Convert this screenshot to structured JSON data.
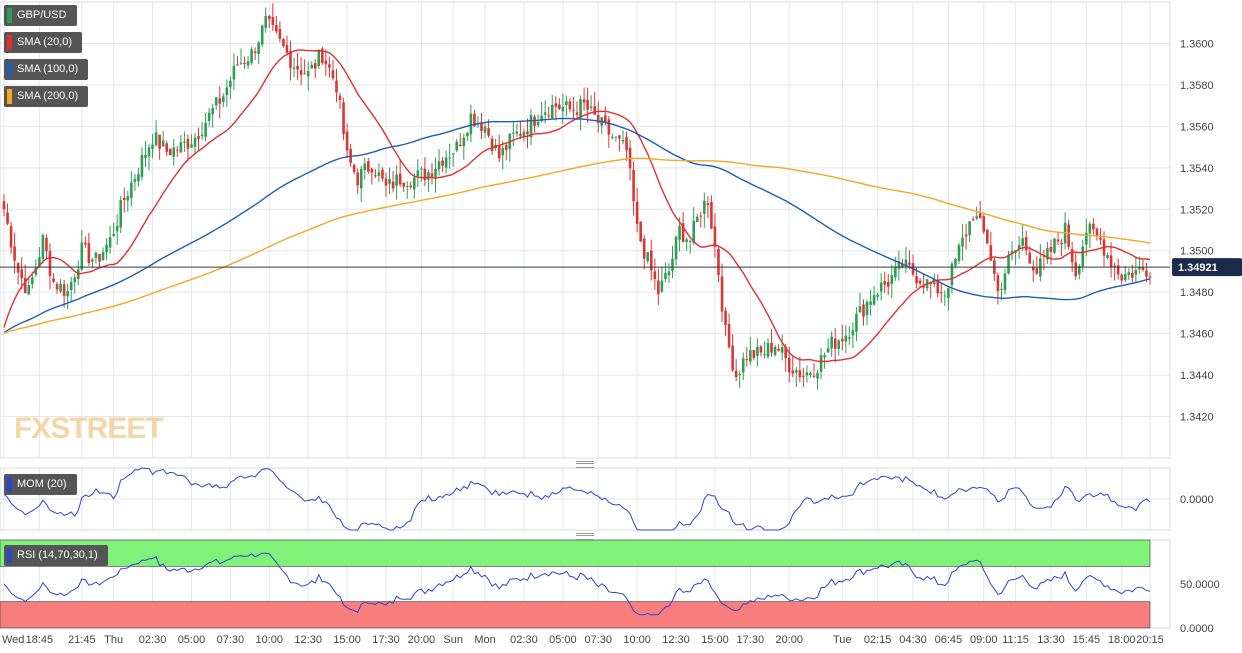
{
  "chart_data": [
    {
      "type": "candlestick",
      "symbol": "GBP/USD",
      "last_price": "1.34921",
      "price_ylim": [
        1.34,
        1.362
      ],
      "y_ticks": [
        "1.3600",
        "1.3580",
        "1.3560",
        "1.3540",
        "1.3520",
        "1.3500",
        "1.3480",
        "1.3460",
        "1.3440",
        "1.3420"
      ],
      "x_ticks": [
        {
          "label": "Wed",
          "bar": 0
        },
        {
          "label": "18:45",
          "bar": 10
        },
        {
          "label": "21:45",
          "bar": 22
        },
        {
          "label": "Thu",
          "bar": 31
        },
        {
          "label": "02:30",
          "bar": 42
        },
        {
          "label": "05:00",
          "bar": 53
        },
        {
          "label": "07:30",
          "bar": 64
        },
        {
          "label": "10:00",
          "bar": 75
        },
        {
          "label": "12:30",
          "bar": 86
        },
        {
          "label": "15:00",
          "bar": 97
        },
        {
          "label": "17:30",
          "bar": 108
        },
        {
          "label": "20:00",
          "bar": 118
        },
        {
          "label": "Sun",
          "bar": 127
        },
        {
          "label": "Mon",
          "bar": 136
        },
        {
          "label": "02:30",
          "bar": 147
        },
        {
          "label": "05:00",
          "bar": 158
        },
        {
          "label": "07:30",
          "bar": 168
        },
        {
          "label": "10:00",
          "bar": 179
        },
        {
          "label": "12:30",
          "bar": 190
        },
        {
          "label": "15:00",
          "bar": 201
        },
        {
          "label": "17:30",
          "bar": 211
        },
        {
          "label": "20:00",
          "bar": 222
        },
        {
          "label": "Tue",
          "bar": 237
        },
        {
          "label": "02:15",
          "bar": 247
        },
        {
          "label": "04:30",
          "bar": 257
        },
        {
          "label": "06:45",
          "bar": 267
        },
        {
          "label": "09:00",
          "bar": 277
        },
        {
          "label": "11:15",
          "bar": 286
        },
        {
          "label": "13:30",
          "bar": 296
        },
        {
          "label": "15:45",
          "bar": 306
        },
        {
          "label": "18:00",
          "bar": 316
        },
        {
          "label": "20:15",
          "bar": 324
        }
      ],
      "anchors": [
        [
          0,
          1.352
        ],
        [
          4,
          1.349
        ],
        [
          7,
          1.348
        ],
        [
          11,
          1.3505
        ],
        [
          14,
          1.3485
        ],
        [
          18,
          1.348
        ],
        [
          22,
          1.35
        ],
        [
          26,
          1.3495
        ],
        [
          30,
          1.3505
        ],
        [
          34,
          1.3525
        ],
        [
          38,
          1.354
        ],
        [
          42,
          1.3555
        ],
        [
          46,
          1.3548
        ],
        [
          50,
          1.355
        ],
        [
          54,
          1.3555
        ],
        [
          58,
          1.3565
        ],
        [
          62,
          1.3575
        ],
        [
          66,
          1.359
        ],
        [
          70,
          1.3595
        ],
        [
          74,
          1.361
        ],
        [
          78,
          1.36
        ],
        [
          82,
          1.359
        ],
        [
          86,
          1.3585
        ],
        [
          90,
          1.3595
        ],
        [
          94,
          1.358
        ],
        [
          97,
          1.3545
        ],
        [
          100,
          1.3535
        ],
        [
          104,
          1.3542
        ],
        [
          108,
          1.353
        ],
        [
          112,
          1.3535
        ],
        [
          116,
          1.3535
        ],
        [
          120,
          1.3538
        ],
        [
          124,
          1.3545
        ],
        [
          128,
          1.355
        ],
        [
          132,
          1.3565
        ],
        [
          136,
          1.356
        ],
        [
          140,
          1.3545
        ],
        [
          144,
          1.3555
        ],
        [
          148,
          1.356
        ],
        [
          152,
          1.3568
        ],
        [
          156,
          1.357
        ],
        [
          160,
          1.3568
        ],
        [
          164,
          1.357
        ],
        [
          168,
          1.3562
        ],
        [
          172,
          1.3555
        ],
        [
          176,
          1.3548
        ],
        [
          179,
          1.351
        ],
        [
          182,
          1.3495
        ],
        [
          185,
          1.348
        ],
        [
          188,
          1.349
        ],
        [
          191,
          1.351
        ],
        [
          194,
          1.3505
        ],
        [
          197,
          1.352
        ],
        [
          199,
          1.3525
        ],
        [
          202,
          1.349
        ],
        [
          204,
          1.346
        ],
        [
          207,
          1.344
        ],
        [
          210,
          1.345
        ],
        [
          214,
          1.345
        ],
        [
          218,
          1.3455
        ],
        [
          222,
          1.3445
        ],
        [
          226,
          1.344
        ],
        [
          230,
          1.3445
        ],
        [
          234,
          1.3455
        ],
        [
          238,
          1.346
        ],
        [
          242,
          1.347
        ],
        [
          246,
          1.348
        ],
        [
          250,
          1.3485
        ],
        [
          254,
          1.3493
        ],
        [
          258,
          1.3488
        ],
        [
          262,
          1.3483
        ],
        [
          266,
          1.348
        ],
        [
          270,
          1.35
        ],
        [
          274,
          1.3518
        ],
        [
          278,
          1.3505
        ],
        [
          281,
          1.348
        ],
        [
          284,
          1.3495
        ],
        [
          288,
          1.3505
        ],
        [
          292,
          1.349
        ],
        [
          296,
          1.35
        ],
        [
          300,
          1.351
        ],
        [
          303,
          1.349
        ],
        [
          306,
          1.351
        ],
        [
          310,
          1.3505
        ],
        [
          313,
          1.3495
        ],
        [
          316,
          1.3488
        ],
        [
          320,
          1.349
        ],
        [
          325,
          1.3492
        ]
      ],
      "indicators": [
        {
          "name": "SMA (20,0)",
          "color": "#e23030",
          "period": 20
        },
        {
          "name": "SMA (100,0)",
          "color": "#1f5fb0",
          "period": 100
        },
        {
          "name": "SMA (200,0)",
          "color": "#f5a623",
          "period": 200
        }
      ]
    },
    {
      "type": "line",
      "name": "MOM (20)",
      "color": "#2a47c9",
      "ylim": [
        -0.006,
        0.006
      ],
      "y_ticks": [
        "0.0000"
      ]
    },
    {
      "type": "line",
      "name": "RSI (14,70,30,1)",
      "color": "#2a47c9",
      "ylim": [
        0,
        100
      ],
      "overbought": 70,
      "oversold": 30,
      "y_ticks": [
        "50.0000",
        "0.0000"
      ]
    }
  ],
  "watermark": "FXSTREET",
  "colors": {
    "bull": "#2e9e55",
    "bear": "#d93636",
    "grid": "#e4e6ea",
    "rsi_over": "#80f27a",
    "rsi_under": "#f87e7e"
  }
}
